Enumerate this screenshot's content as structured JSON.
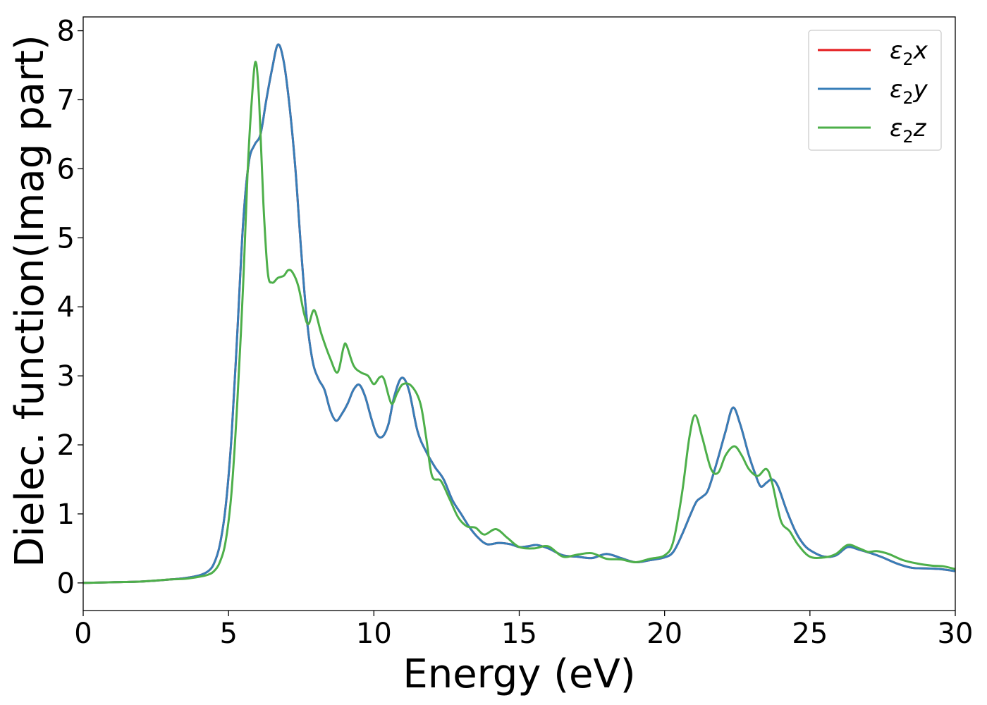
{
  "chart_data": {
    "type": "line",
    "xlabel": "Energy (eV)",
    "ylabel": "Dielec. function(Imag part)",
    "xlim": [
      0,
      30
    ],
    "ylim": [
      -0.4,
      8.2
    ],
    "xticks": [
      "0",
      "5",
      "10",
      "15",
      "20",
      "25",
      "30"
    ],
    "yticks": [
      "0",
      "1",
      "2",
      "3",
      "4",
      "5",
      "6",
      "7",
      "8"
    ],
    "grid": false,
    "legend_position": "top-right",
    "series": [
      {
        "name": "ε2x",
        "legend_main": "ε",
        "legend_sub": "2",
        "legend_suffix": "x",
        "color": "#e41a1c",
        "points": [
          [
            0,
            0
          ],
          [
            1,
            0.01
          ],
          [
            2,
            0.02
          ],
          [
            3,
            0.05
          ],
          [
            3.5,
            0.07
          ],
          [
            4,
            0.11
          ],
          [
            4.3,
            0.17
          ],
          [
            4.5,
            0.28
          ],
          [
            4.7,
            0.55
          ],
          [
            4.9,
            1.1
          ],
          [
            5.1,
            2.1
          ],
          [
            5.3,
            3.6
          ],
          [
            5.5,
            5.2
          ],
          [
            5.7,
            6.1
          ],
          [
            5.9,
            6.35
          ],
          [
            6.1,
            6.5
          ],
          [
            6.3,
            7.0
          ],
          [
            6.5,
            7.45
          ],
          [
            6.7,
            7.8
          ],
          [
            6.9,
            7.55
          ],
          [
            7.1,
            6.9
          ],
          [
            7.3,
            6.0
          ],
          [
            7.5,
            4.8
          ],
          [
            7.7,
            3.8
          ],
          [
            7.9,
            3.2
          ],
          [
            8.1,
            2.95
          ],
          [
            8.3,
            2.8
          ],
          [
            8.5,
            2.5
          ],
          [
            8.7,
            2.35
          ],
          [
            8.9,
            2.45
          ],
          [
            9.1,
            2.6
          ],
          [
            9.3,
            2.8
          ],
          [
            9.5,
            2.87
          ],
          [
            9.7,
            2.7
          ],
          [
            9.9,
            2.4
          ],
          [
            10.1,
            2.15
          ],
          [
            10.3,
            2.12
          ],
          [
            10.5,
            2.3
          ],
          [
            10.7,
            2.7
          ],
          [
            10.95,
            2.97
          ],
          [
            11.2,
            2.8
          ],
          [
            11.5,
            2.2
          ],
          [
            11.8,
            1.9
          ],
          [
            12.1,
            1.68
          ],
          [
            12.4,
            1.5
          ],
          [
            12.7,
            1.2
          ],
          [
            13.0,
            1.0
          ],
          [
            13.3,
            0.8
          ],
          [
            13.6,
            0.65
          ],
          [
            13.9,
            0.56
          ],
          [
            14.3,
            0.58
          ],
          [
            14.7,
            0.56
          ],
          [
            15.0,
            0.52
          ],
          [
            15.3,
            0.53
          ],
          [
            15.6,
            0.55
          ],
          [
            16.0,
            0.5
          ],
          [
            16.5,
            0.4
          ],
          [
            17.0,
            0.38
          ],
          [
            17.5,
            0.36
          ],
          [
            18.0,
            0.42
          ],
          [
            18.5,
            0.36
          ],
          [
            19.0,
            0.3
          ],
          [
            19.5,
            0.33
          ],
          [
            20.0,
            0.37
          ],
          [
            20.3,
            0.45
          ],
          [
            20.6,
            0.7
          ],
          [
            20.9,
            1.0
          ],
          [
            21.1,
            1.18
          ],
          [
            21.3,
            1.25
          ],
          [
            21.5,
            1.35
          ],
          [
            21.8,
            1.75
          ],
          [
            22.1,
            2.2
          ],
          [
            22.35,
            2.54
          ],
          [
            22.6,
            2.3
          ],
          [
            22.9,
            1.85
          ],
          [
            23.1,
            1.6
          ],
          [
            23.3,
            1.4
          ],
          [
            23.5,
            1.45
          ],
          [
            23.7,
            1.5
          ],
          [
            23.9,
            1.4
          ],
          [
            24.2,
            1.05
          ],
          [
            24.5,
            0.75
          ],
          [
            24.8,
            0.55
          ],
          [
            25.1,
            0.45
          ],
          [
            25.5,
            0.38
          ],
          [
            25.9,
            0.4
          ],
          [
            26.3,
            0.52
          ],
          [
            26.7,
            0.48
          ],
          [
            27.1,
            0.43
          ],
          [
            27.5,
            0.37
          ],
          [
            28.0,
            0.28
          ],
          [
            28.5,
            0.22
          ],
          [
            29.0,
            0.21
          ],
          [
            29.5,
            0.2
          ],
          [
            30,
            0.17
          ]
        ]
      },
      {
        "name": "ε2y",
        "legend_main": "ε",
        "legend_sub": "2",
        "legend_suffix": "y",
        "color": "#377eb8",
        "points": [
          [
            0,
            0
          ],
          [
            1,
            0.01
          ],
          [
            2,
            0.02
          ],
          [
            3,
            0.05
          ],
          [
            3.5,
            0.07
          ],
          [
            4,
            0.11
          ],
          [
            4.3,
            0.17
          ],
          [
            4.5,
            0.28
          ],
          [
            4.7,
            0.55
          ],
          [
            4.9,
            1.1
          ],
          [
            5.1,
            2.1
          ],
          [
            5.3,
            3.6
          ],
          [
            5.5,
            5.2
          ],
          [
            5.7,
            6.1
          ],
          [
            5.9,
            6.35
          ],
          [
            6.1,
            6.5
          ],
          [
            6.3,
            7.0
          ],
          [
            6.5,
            7.45
          ],
          [
            6.7,
            7.8
          ],
          [
            6.9,
            7.55
          ],
          [
            7.1,
            6.9
          ],
          [
            7.3,
            6.0
          ],
          [
            7.5,
            4.8
          ],
          [
            7.7,
            3.8
          ],
          [
            7.9,
            3.2
          ],
          [
            8.1,
            2.95
          ],
          [
            8.3,
            2.8
          ],
          [
            8.5,
            2.5
          ],
          [
            8.7,
            2.35
          ],
          [
            8.9,
            2.45
          ],
          [
            9.1,
            2.6
          ],
          [
            9.3,
            2.8
          ],
          [
            9.5,
            2.87
          ],
          [
            9.7,
            2.7
          ],
          [
            9.9,
            2.4
          ],
          [
            10.1,
            2.15
          ],
          [
            10.3,
            2.12
          ],
          [
            10.5,
            2.3
          ],
          [
            10.7,
            2.7
          ],
          [
            10.95,
            2.97
          ],
          [
            11.2,
            2.8
          ],
          [
            11.5,
            2.2
          ],
          [
            11.8,
            1.9
          ],
          [
            12.1,
            1.68
          ],
          [
            12.4,
            1.5
          ],
          [
            12.7,
            1.2
          ],
          [
            13.0,
            1.0
          ],
          [
            13.3,
            0.8
          ],
          [
            13.6,
            0.65
          ],
          [
            13.9,
            0.56
          ],
          [
            14.3,
            0.58
          ],
          [
            14.7,
            0.56
          ],
          [
            15.0,
            0.52
          ],
          [
            15.3,
            0.53
          ],
          [
            15.6,
            0.55
          ],
          [
            16.0,
            0.5
          ],
          [
            16.5,
            0.4
          ],
          [
            17.0,
            0.38
          ],
          [
            17.5,
            0.36
          ],
          [
            18.0,
            0.42
          ],
          [
            18.5,
            0.36
          ],
          [
            19.0,
            0.3
          ],
          [
            19.5,
            0.33
          ],
          [
            20.0,
            0.37
          ],
          [
            20.3,
            0.45
          ],
          [
            20.6,
            0.7
          ],
          [
            20.9,
            1.0
          ],
          [
            21.1,
            1.18
          ],
          [
            21.3,
            1.25
          ],
          [
            21.5,
            1.35
          ],
          [
            21.8,
            1.75
          ],
          [
            22.1,
            2.2
          ],
          [
            22.35,
            2.54
          ],
          [
            22.6,
            2.3
          ],
          [
            22.9,
            1.85
          ],
          [
            23.1,
            1.6
          ],
          [
            23.3,
            1.4
          ],
          [
            23.5,
            1.45
          ],
          [
            23.7,
            1.5
          ],
          [
            23.9,
            1.4
          ],
          [
            24.2,
            1.05
          ],
          [
            24.5,
            0.75
          ],
          [
            24.8,
            0.55
          ],
          [
            25.1,
            0.45
          ],
          [
            25.5,
            0.38
          ],
          [
            25.9,
            0.4
          ],
          [
            26.3,
            0.52
          ],
          [
            26.7,
            0.48
          ],
          [
            27.1,
            0.43
          ],
          [
            27.5,
            0.37
          ],
          [
            28.0,
            0.28
          ],
          [
            28.5,
            0.22
          ],
          [
            29.0,
            0.21
          ],
          [
            29.5,
            0.2
          ],
          [
            30,
            0.17
          ]
        ]
      },
      {
        "name": "ε2z",
        "legend_main": "ε",
        "legend_sub": "2",
        "legend_suffix": "z",
        "color": "#4daf4a",
        "points": [
          [
            0,
            0
          ],
          [
            1,
            0.01
          ],
          [
            2,
            0.02
          ],
          [
            3,
            0.05
          ],
          [
            3.5,
            0.06
          ],
          [
            4,
            0.09
          ],
          [
            4.3,
            0.12
          ],
          [
            4.5,
            0.17
          ],
          [
            4.7,
            0.3
          ],
          [
            4.9,
            0.6
          ],
          [
            5.1,
            1.3
          ],
          [
            5.3,
            2.6
          ],
          [
            5.5,
            4.3
          ],
          [
            5.65,
            5.9
          ],
          [
            5.8,
            7.0
          ],
          [
            5.93,
            7.55
          ],
          [
            6.05,
            7.0
          ],
          [
            6.2,
            5.5
          ],
          [
            6.35,
            4.5
          ],
          [
            6.5,
            4.35
          ],
          [
            6.7,
            4.42
          ],
          [
            6.9,
            4.45
          ],
          [
            7.05,
            4.53
          ],
          [
            7.2,
            4.5
          ],
          [
            7.4,
            4.3
          ],
          [
            7.6,
            3.9
          ],
          [
            7.75,
            3.75
          ],
          [
            7.95,
            3.95
          ],
          [
            8.2,
            3.6
          ],
          [
            8.5,
            3.25
          ],
          [
            8.75,
            3.05
          ],
          [
            8.95,
            3.4
          ],
          [
            9.05,
            3.45
          ],
          [
            9.3,
            3.15
          ],
          [
            9.55,
            3.05
          ],
          [
            9.8,
            3.0
          ],
          [
            10.0,
            2.88
          ],
          [
            10.2,
            2.98
          ],
          [
            10.35,
            2.95
          ],
          [
            10.6,
            2.6
          ],
          [
            10.8,
            2.75
          ],
          [
            11.0,
            2.88
          ],
          [
            11.3,
            2.85
          ],
          [
            11.6,
            2.6
          ],
          [
            11.8,
            2.1
          ],
          [
            12.0,
            1.55
          ],
          [
            12.3,
            1.48
          ],
          [
            12.6,
            1.22
          ],
          [
            12.9,
            0.95
          ],
          [
            13.2,
            0.82
          ],
          [
            13.5,
            0.8
          ],
          [
            13.8,
            0.7
          ],
          [
            14.2,
            0.78
          ],
          [
            14.6,
            0.65
          ],
          [
            15.0,
            0.52
          ],
          [
            15.5,
            0.5
          ],
          [
            16.0,
            0.53
          ],
          [
            16.5,
            0.38
          ],
          [
            17.0,
            0.41
          ],
          [
            17.5,
            0.43
          ],
          [
            18.0,
            0.35
          ],
          [
            18.5,
            0.34
          ],
          [
            19.0,
            0.3
          ],
          [
            19.5,
            0.35
          ],
          [
            20.0,
            0.4
          ],
          [
            20.3,
            0.6
          ],
          [
            20.6,
            1.3
          ],
          [
            20.85,
            2.1
          ],
          [
            21.05,
            2.43
          ],
          [
            21.3,
            2.1
          ],
          [
            21.6,
            1.65
          ],
          [
            21.85,
            1.6
          ],
          [
            22.1,
            1.85
          ],
          [
            22.4,
            1.98
          ],
          [
            22.65,
            1.85
          ],
          [
            22.9,
            1.65
          ],
          [
            23.2,
            1.55
          ],
          [
            23.5,
            1.65
          ],
          [
            23.7,
            1.45
          ],
          [
            24.0,
            0.9
          ],
          [
            24.3,
            0.75
          ],
          [
            24.6,
            0.55
          ],
          [
            25.0,
            0.38
          ],
          [
            25.5,
            0.37
          ],
          [
            25.9,
            0.42
          ],
          [
            26.3,
            0.55
          ],
          [
            26.7,
            0.5
          ],
          [
            27.0,
            0.45
          ],
          [
            27.3,
            0.46
          ],
          [
            27.7,
            0.42
          ],
          [
            28.2,
            0.33
          ],
          [
            28.7,
            0.28
          ],
          [
            29.2,
            0.25
          ],
          [
            29.6,
            0.24
          ],
          [
            30,
            0.2
          ]
        ]
      }
    ]
  }
}
